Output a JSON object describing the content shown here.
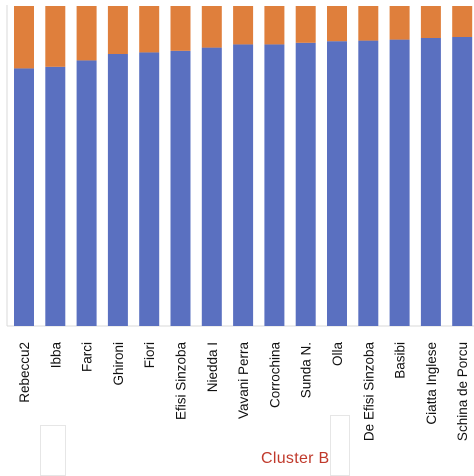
{
  "chart_data": {
    "type": "bar",
    "stacked": true,
    "percent_stacked": true,
    "categories": [
      "Rebeccu2",
      "Ibba",
      "Farci",
      "Ghironi",
      "Fiori",
      "Efisi Sinzoba",
      "Niedda I",
      "Vavani Perra",
      "Corrochina",
      "Sunda N.",
      "Olla",
      "De Efisi Sinzoba",
      "Basibi",
      "Ciatta Inglese",
      "Schina de Porcu"
    ],
    "series": [
      {
        "values": [
          80.5,
          81.0,
          83.0,
          85.0,
          85.5,
          86.0,
          87.0,
          88.0,
          88.0,
          88.5,
          89.0,
          89.2,
          89.5,
          90.0,
          90.3
        ]
      },
      {
        "values": [
          19.5,
          19.0,
          17.0,
          15.0,
          14.5,
          14.0,
          13.0,
          12.0,
          12.0,
          11.5,
          11.0,
          10.8,
          10.5,
          10.0,
          9.7
        ]
      }
    ],
    "colors": [
      "#5a70c0",
      "#df7f3c"
    ],
    "ylim": [
      0,
      100
    ],
    "grid": false,
    "annotation": "Cluster B",
    "annotation_color": "#c0392b"
  }
}
